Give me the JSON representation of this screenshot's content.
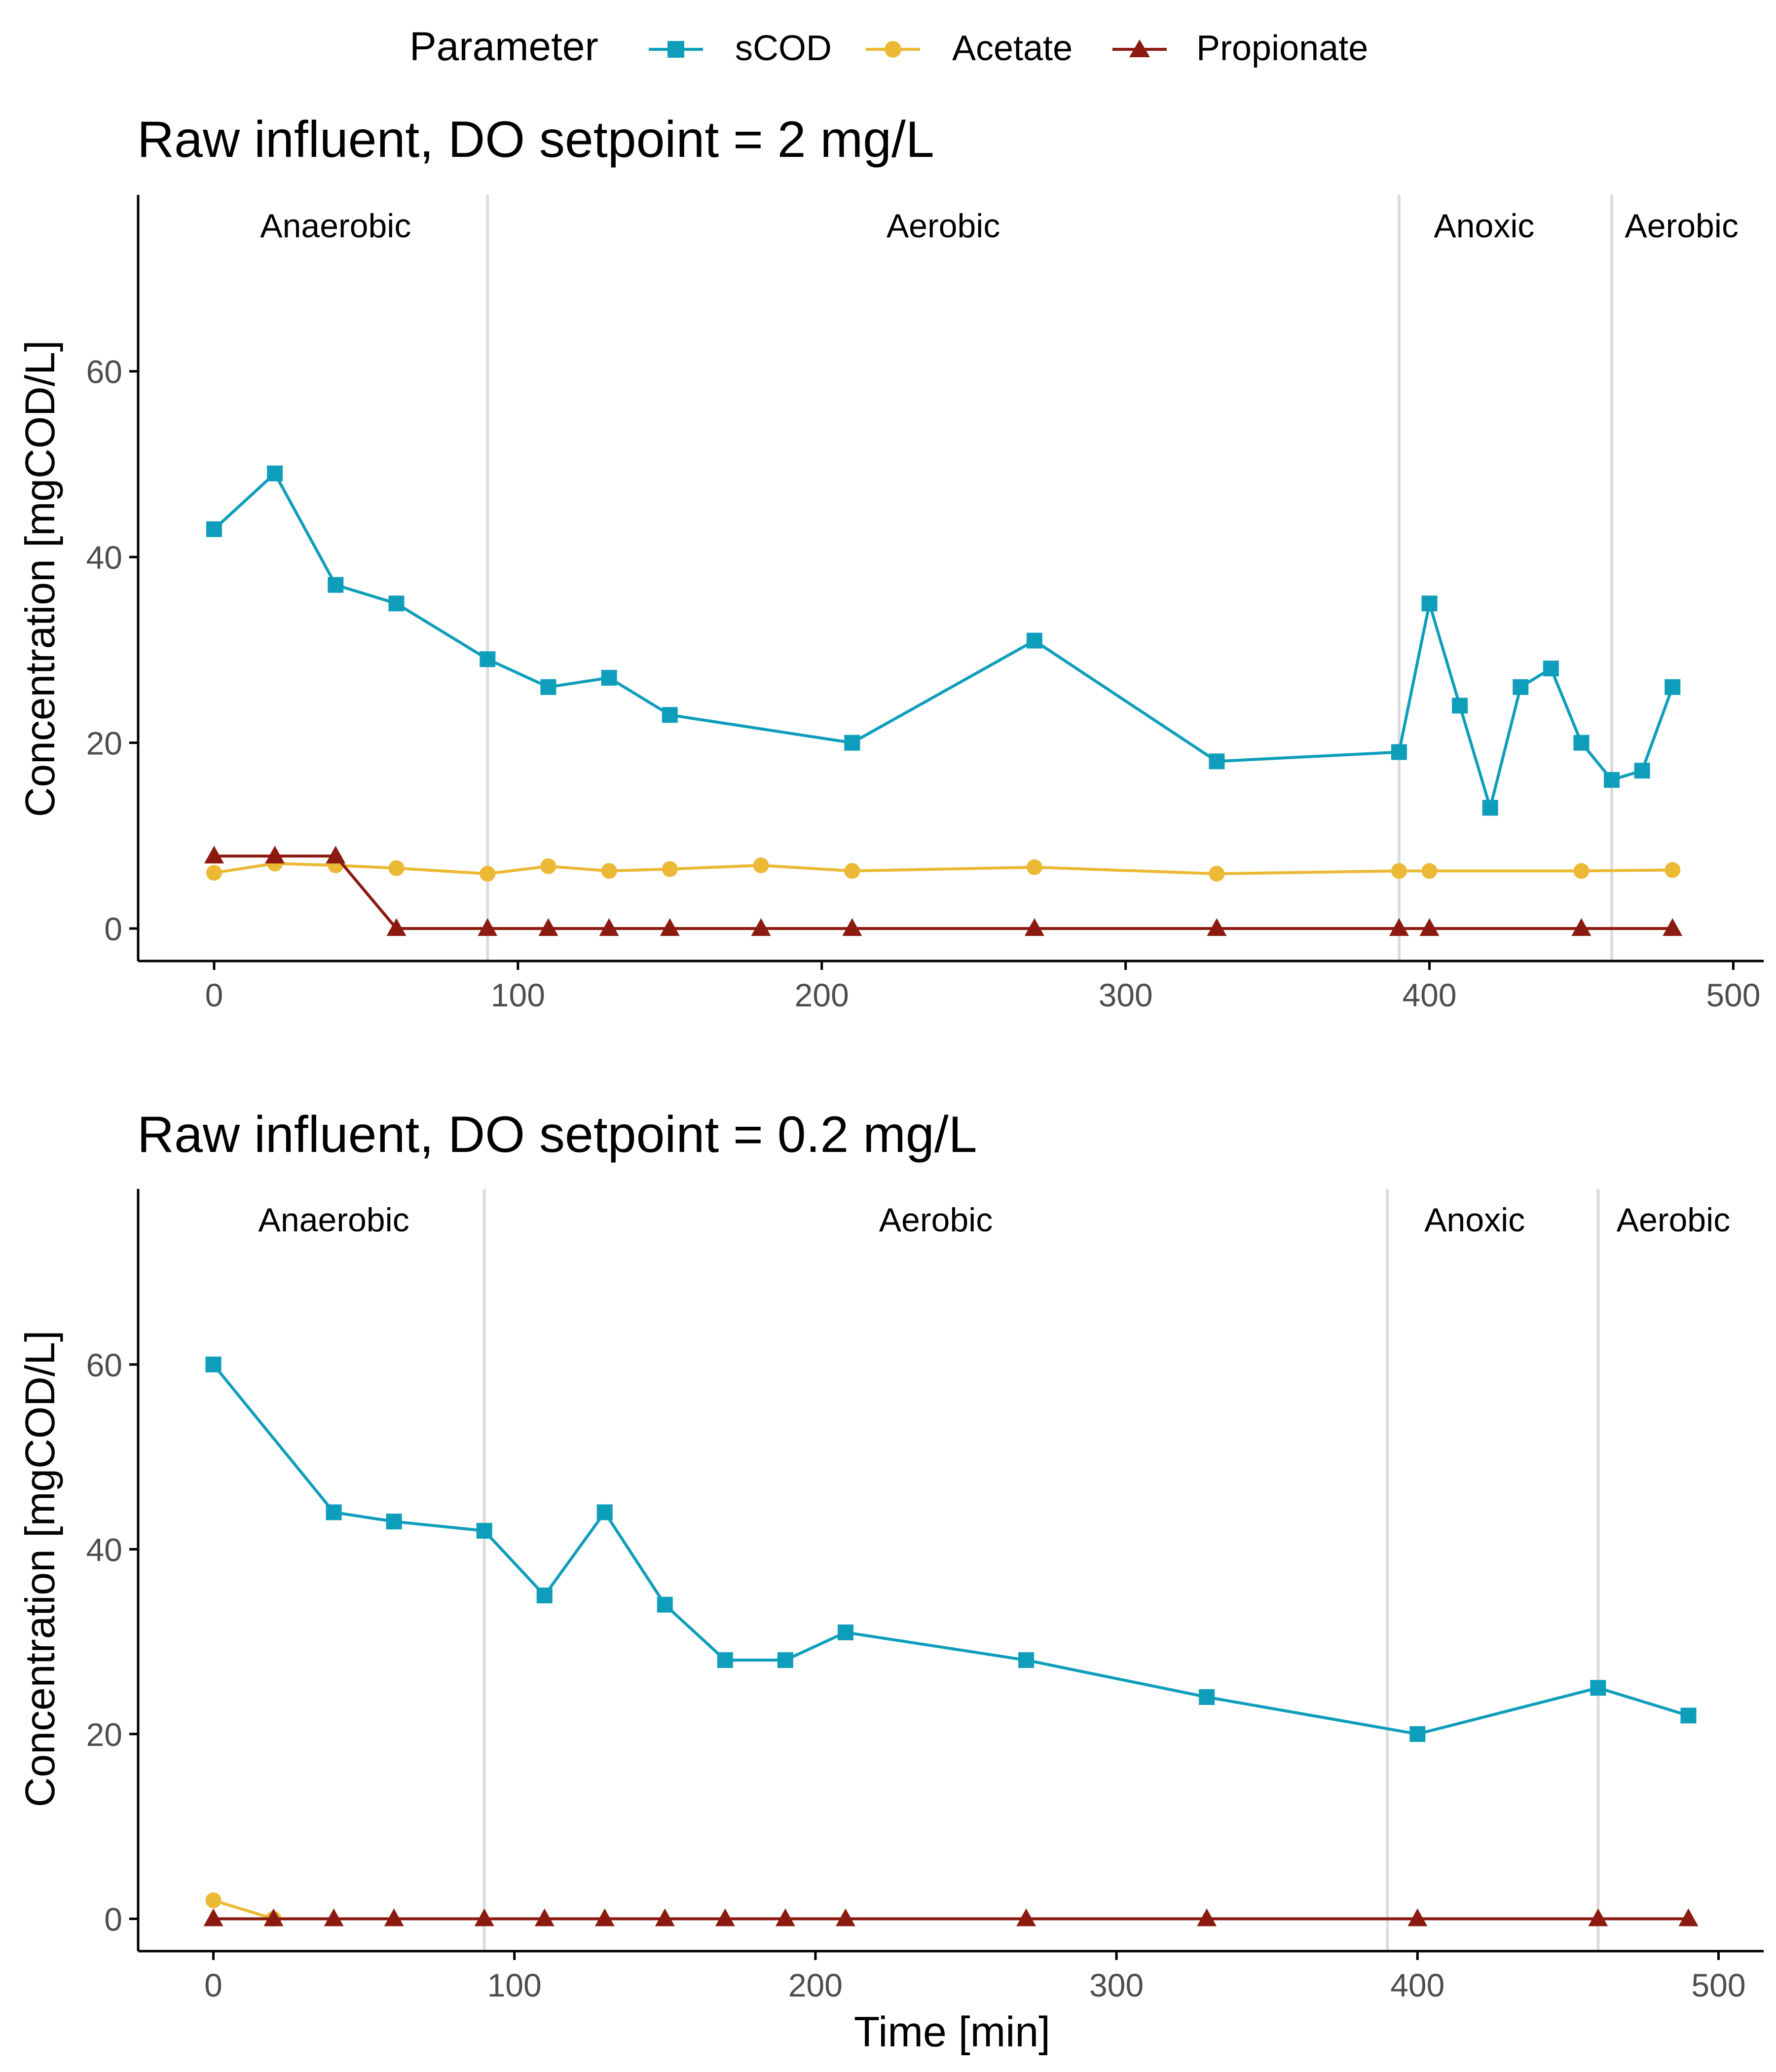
{
  "legend": {
    "title": "Parameter",
    "entries": [
      {
        "label": "sCOD",
        "marker": "square",
        "color": "#0e9ebb"
      },
      {
        "label": "Acetate",
        "marker": "circle",
        "color": "#ebb935"
      },
      {
        "label": "Propionate",
        "marker": "triangle",
        "color": "#8b1a10"
      }
    ]
  },
  "colors": {
    "scod": "#0e9ebb",
    "acetate": "#ebb935",
    "propionate": "#8b1a10",
    "phase_line": "#dcdcdc",
    "axis": "#000000",
    "tick_label": "#4d4d4d"
  },
  "chart_data": [
    {
      "type": "line",
      "title": "Raw influent, DO setpoint = 2 mg/L",
      "xlabel": "",
      "ylabel": "Concentration [mgCOD/L]",
      "xlim": [
        -25,
        510
      ],
      "ylim": [
        -3.5,
        79
      ],
      "x_ticks": [
        0,
        100,
        200,
        300,
        400,
        500
      ],
      "y_ticks": [
        0,
        20,
        40,
        60
      ],
      "grid": false,
      "legend_position": "top",
      "phase_boundaries": [
        90,
        390,
        460
      ],
      "phases": [
        {
          "label": "Anaerobic",
          "x": 40
        },
        {
          "label": "Aerobic",
          "x": 240
        },
        {
          "label": "Anoxic",
          "x": 418
        },
        {
          "label": "Aerobic",
          "x": 483
        }
      ],
      "series": [
        {
          "name": "sCOD",
          "marker": "square",
          "x": [
            0,
            20,
            40,
            60,
            90,
            110,
            130,
            150,
            210,
            270,
            330,
            390,
            400,
            410,
            420,
            430,
            440,
            450,
            460,
            470,
            480
          ],
          "y": [
            43,
            49,
            37,
            35,
            29,
            26,
            27,
            23,
            20,
            31,
            18,
            19,
            35,
            24,
            13,
            26,
            28,
            20,
            16,
            17,
            26
          ]
        },
        {
          "name": "Acetate",
          "marker": "circle",
          "x": [
            0,
            20,
            40,
            60,
            90,
            110,
            130,
            150,
            180,
            210,
            270,
            330,
            390,
            400,
            450,
            480
          ],
          "y": [
            6,
            7,
            6.8,
            6.5,
            5.9,
            6.7,
            6.2,
            6.4,
            6.8,
            6.2,
            6.6,
            5.9,
            6.2,
            6.2,
            6.2,
            6.3
          ]
        },
        {
          "name": "Propionate",
          "marker": "triangle",
          "x": [
            0,
            20,
            40,
            60,
            90,
            110,
            130,
            150,
            180,
            210,
            270,
            330,
            390,
            400,
            450,
            480
          ],
          "y": [
            7.8,
            7.8,
            7.8,
            0,
            0,
            0,
            0,
            0,
            0,
            0,
            0,
            0,
            0,
            0,
            0,
            0
          ]
        }
      ]
    },
    {
      "type": "line",
      "title": "Raw influent, DO setpoint = 0.2 mg/L",
      "xlabel": "Time [min]",
      "ylabel": "Concentration [mgCOD/L]",
      "xlim": [
        -25,
        515
      ],
      "ylim": [
        -3.5,
        79
      ],
      "x_ticks": [
        0,
        100,
        200,
        300,
        400,
        500
      ],
      "y_ticks": [
        0,
        20,
        40,
        60
      ],
      "grid": false,
      "phase_boundaries": [
        90,
        390,
        460
      ],
      "phases": [
        {
          "label": "Anaerobic",
          "x": 40
        },
        {
          "label": "Aerobic",
          "x": 240
        },
        {
          "label": "Anoxic",
          "x": 419
        },
        {
          "label": "Aerobic",
          "x": 485
        }
      ],
      "series": [
        {
          "name": "sCOD",
          "marker": "square",
          "x": [
            0,
            40,
            60,
            90,
            110,
            130,
            150,
            170,
            190,
            210,
            270,
            330,
            400,
            460,
            490
          ],
          "y": [
            60,
            44,
            43,
            42,
            35,
            44,
            34,
            28,
            28,
            31,
            28,
            24,
            20,
            25,
            22
          ]
        },
        {
          "name": "Acetate",
          "marker": "circle",
          "x": [
            0,
            20
          ],
          "y": [
            2,
            0
          ]
        },
        {
          "name": "Propionate",
          "marker": "triangle",
          "x": [
            0,
            20,
            40,
            60,
            90,
            110,
            130,
            150,
            170,
            190,
            210,
            270,
            330,
            400,
            460,
            490
          ],
          "y": [
            0,
            0,
            0,
            0,
            0,
            0,
            0,
            0,
            0,
            0,
            0,
            0,
            0,
            0,
            0,
            0
          ]
        }
      ]
    }
  ]
}
